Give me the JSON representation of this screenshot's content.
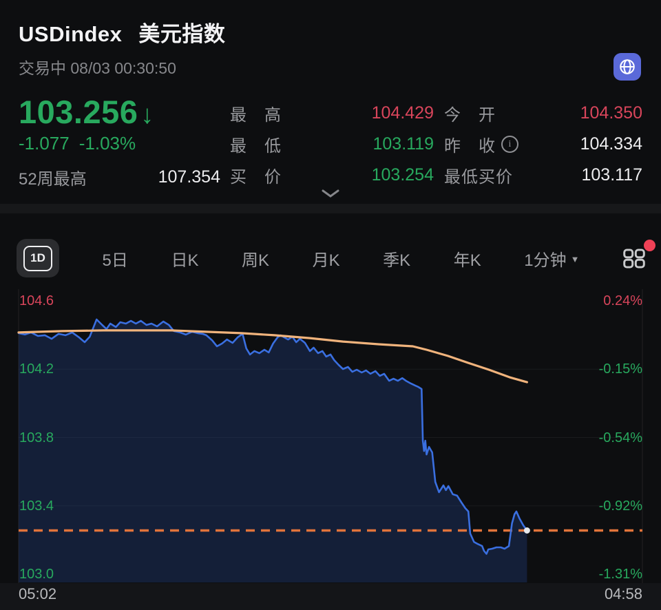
{
  "header": {
    "symbol": "USDindex",
    "name": "美元指数",
    "status_line": "交易中 08/03 00:30:50"
  },
  "quote": {
    "price": "103.256",
    "arrow": "↓",
    "change": "-1.077",
    "change_pct": "-1.03%",
    "week52_label": "52周最高",
    "week52_value": "107.354"
  },
  "stats": {
    "col1": [
      {
        "label": "最　高",
        "value": "104.429",
        "tone": "up"
      },
      {
        "label": "最　低",
        "value": "103.119",
        "tone": "down"
      },
      {
        "label": "买　价",
        "value": "103.254",
        "tone": "down"
      }
    ],
    "col2": [
      {
        "label": "今　开",
        "value": "104.350",
        "tone": "up"
      },
      {
        "label": "昨　收",
        "info": "i",
        "value": "104.334",
        "tone": "flat"
      },
      {
        "label": "最低买价",
        "value": "103.117",
        "tone": "flat"
      }
    ]
  },
  "tabs": {
    "active": "1D",
    "items": [
      "5日",
      "日K",
      "周K",
      "月K",
      "季K",
      "年K"
    ],
    "dropdown": "1分钟",
    "dropdown_caret": "▼"
  },
  "chart_data": {
    "type": "line",
    "title": "USDindex 1D intraday",
    "prev_close": 104.334,
    "open": 104.35,
    "high": 104.429,
    "low": 103.119,
    "current_price": 103.256,
    "y_axis": {
      "left_labels": [
        "104.6",
        "104.2",
        "103.8",
        "103.4",
        "103.0"
      ],
      "right_labels": [
        "0.24%",
        "-0.15%",
        "-0.54%",
        "-0.92%",
        "-1.31%"
      ],
      "label_tones": [
        "up",
        "down",
        "down",
        "down",
        "down"
      ],
      "price_range_top": 104.6,
      "price_range_bottom": 103.0
    },
    "x_axis": {
      "start_label": "05:02",
      "end_label": "04:58"
    },
    "current_price_line": {
      "style": "dashed",
      "price": 103.256
    },
    "series": [
      {
        "name": "price",
        "points": [
          [
            0.0,
            104.411
          ],
          [
            0.01,
            104.403
          ],
          [
            0.02,
            104.415
          ],
          [
            0.031,
            104.395
          ],
          [
            0.042,
            104.399
          ],
          [
            0.053,
            104.378
          ],
          [
            0.064,
            104.407
          ],
          [
            0.075,
            104.399
          ],
          [
            0.086,
            104.415
          ],
          [
            0.097,
            104.386
          ],
          [
            0.106,
            104.358
          ],
          [
            0.114,
            104.39
          ],
          [
            0.125,
            104.491
          ],
          [
            0.134,
            104.459
          ],
          [
            0.141,
            104.435
          ],
          [
            0.147,
            104.467
          ],
          [
            0.156,
            104.447
          ],
          [
            0.163,
            104.475
          ],
          [
            0.172,
            104.467
          ],
          [
            0.18,
            104.483
          ],
          [
            0.188,
            104.467
          ],
          [
            0.196,
            104.483
          ],
          [
            0.205,
            104.459
          ],
          [
            0.213,
            104.467
          ],
          [
            0.222,
            104.451
          ],
          [
            0.232,
            104.479
          ],
          [
            0.241,
            104.459
          ],
          [
            0.249,
            104.423
          ],
          [
            0.259,
            104.415
          ],
          [
            0.268,
            104.403
          ],
          [
            0.278,
            104.419
          ],
          [
            0.287,
            104.411
          ],
          [
            0.295,
            104.407
          ],
          [
            0.301,
            104.399
          ],
          [
            0.31,
            104.37
          ],
          [
            0.318,
            104.334
          ],
          [
            0.326,
            104.35
          ],
          [
            0.334,
            104.374
          ],
          [
            0.343,
            104.354
          ],
          [
            0.351,
            104.386
          ],
          [
            0.359,
            104.407
          ],
          [
            0.365,
            104.322
          ],
          [
            0.371,
            104.286
          ],
          [
            0.378,
            104.306
          ],
          [
            0.386,
            104.294
          ],
          [
            0.394,
            104.314
          ],
          [
            0.401,
            104.298
          ],
          [
            0.408,
            104.35
          ],
          [
            0.415,
            104.386
          ],
          [
            0.42,
            104.399
          ],
          [
            0.426,
            104.386
          ],
          [
            0.432,
            104.374
          ],
          [
            0.439,
            104.39
          ],
          [
            0.445,
            104.358
          ],
          [
            0.451,
            104.378
          ],
          [
            0.459,
            104.354
          ],
          [
            0.467,
            104.306
          ],
          [
            0.473,
            104.326
          ],
          [
            0.48,
            104.294
          ],
          [
            0.487,
            104.306
          ],
          [
            0.493,
            104.274
          ],
          [
            0.5,
            104.286
          ],
          [
            0.506,
            104.253
          ],
          [
            0.513,
            104.225
          ],
          [
            0.52,
            104.201
          ],
          [
            0.528,
            104.213
          ],
          [
            0.535,
            104.185
          ],
          [
            0.542,
            104.197
          ],
          [
            0.55,
            104.181
          ],
          [
            0.557,
            104.193
          ],
          [
            0.564,
            104.173
          ],
          [
            0.572,
            104.189
          ],
          [
            0.579,
            104.161
          ],
          [
            0.586,
            104.173
          ],
          [
            0.594,
            104.132
          ],
          [
            0.601,
            104.144
          ],
          [
            0.608,
            104.132
          ],
          [
            0.615,
            104.148
          ],
          [
            0.621,
            104.132
          ],
          [
            0.629,
            104.116
          ],
          [
            0.636,
            104.104
          ],
          [
            0.641,
            104.096
          ],
          [
            0.646,
            104.084
          ],
          [
            0.648,
            103.782
          ],
          [
            0.65,
            103.721
          ],
          [
            0.652,
            103.782
          ],
          [
            0.654,
            103.701
          ],
          [
            0.658,
            103.745
          ],
          [
            0.663,
            103.713
          ],
          [
            0.668,
            103.54
          ],
          [
            0.674,
            103.48
          ],
          [
            0.681,
            103.52
          ],
          [
            0.685,
            103.492
          ],
          [
            0.689,
            103.516
          ],
          [
            0.696,
            103.468
          ],
          [
            0.703,
            103.46
          ],
          [
            0.71,
            103.419
          ],
          [
            0.716,
            103.387
          ],
          [
            0.721,
            103.367
          ],
          [
            0.724,
            103.238
          ],
          [
            0.73,
            103.189
          ],
          [
            0.736,
            103.177
          ],
          [
            0.743,
            103.165
          ],
          [
            0.746,
            103.137
          ],
          [
            0.75,
            103.119
          ],
          [
            0.753,
            103.145
          ],
          [
            0.759,
            103.149
          ],
          [
            0.766,
            103.157
          ],
          [
            0.773,
            103.157
          ],
          [
            0.779,
            103.149
          ],
          [
            0.786,
            103.165
          ],
          [
            0.791,
            103.298
          ],
          [
            0.795,
            103.351
          ],
          [
            0.798,
            103.367
          ],
          [
            0.803,
            103.326
          ],
          [
            0.809,
            103.286
          ],
          [
            0.815,
            103.256
          ]
        ]
      },
      {
        "name": "average",
        "points": [
          [
            0.0,
            104.415
          ],
          [
            0.07,
            104.423
          ],
          [
            0.136,
            104.427
          ],
          [
            0.2,
            104.427
          ],
          [
            0.246,
            104.427
          ],
          [
            0.3,
            104.419
          ],
          [
            0.357,
            104.411
          ],
          [
            0.41,
            104.399
          ],
          [
            0.467,
            104.382
          ],
          [
            0.52,
            104.362
          ],
          [
            0.577,
            104.346
          ],
          [
            0.632,
            104.334
          ],
          [
            0.654,
            104.314
          ],
          [
            0.688,
            104.278
          ],
          [
            0.721,
            104.237
          ],
          [
            0.754,
            104.197
          ],
          [
            0.787,
            104.153
          ],
          [
            0.815,
            104.124
          ]
        ]
      }
    ]
  },
  "colors": {
    "up_red": "#d8455b",
    "down_green": "#28a95e",
    "neutral_white": "#ececee",
    "blue_line": "#3a6fe0",
    "avg_line": "#f0b37c",
    "dashed_line": "#e2743b",
    "area_fill": "rgba(36,72,150,0.30)",
    "globe_bg": "#5a69d9",
    "badge_red": "#ef4156"
  }
}
